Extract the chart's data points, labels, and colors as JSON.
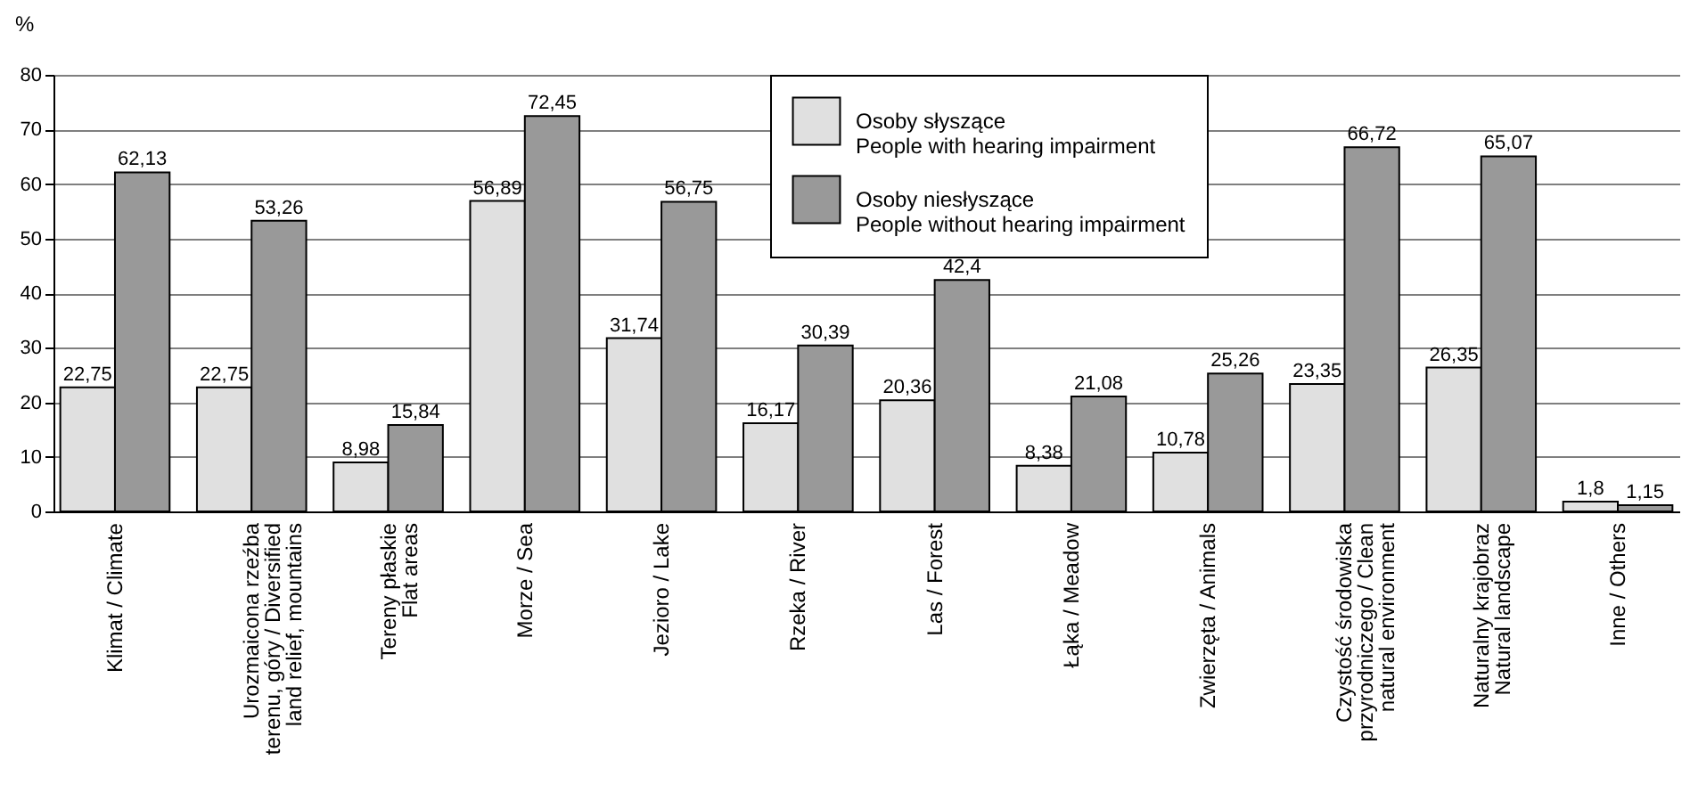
{
  "chart_data": {
    "type": "bar",
    "ylabel": "%",
    "categories": [
      "Klimat / Climate",
      "Urozmaicona rzeźba\nterenu, góry / Diversified\nland relief, mountains",
      "Tereny płaskie\nFlat areas",
      "Morze / Sea",
      "Jezioro / Lake",
      "Rzeka / River",
      "Las / Forest",
      "Łąka  / Meadow",
      "Zwierzęta / Animals",
      "Czystość środowiska\nprzyrodniczego / Clean\nnatural environment",
      "Naturalny krajobraz\nNatural landscape",
      "Inne / Others"
    ],
    "series": [
      {
        "name": "Osoby słyszące\nPeople with hearing impairment",
        "color": "#e0e0e0",
        "values": [
          22.75,
          22.75,
          8.98,
          56.89,
          31.74,
          16.17,
          20.36,
          8.38,
          10.78,
          23.35,
          26.35,
          1.8
        ],
        "value_labels": [
          "22,75",
          "22,75",
          "8,98",
          "56,89",
          "31,74",
          "16,17",
          "20,36",
          "8,38",
          "10,78",
          "23,35",
          "26,35",
          "1,8"
        ]
      },
      {
        "name": "Osoby niesłyszące\nPeople without hearing impairment",
        "color": "#999999",
        "values": [
          62.13,
          53.26,
          15.84,
          72.45,
          56.75,
          30.39,
          42.4,
          21.08,
          25.26,
          66.72,
          65.07,
          1.15
        ],
        "value_labels": [
          "62,13",
          "53,26",
          "15,84",
          "72,45",
          "56,75",
          "30,39",
          "42,4",
          "21,08",
          "25,26",
          "66,72",
          "65,07",
          "1,15"
        ]
      }
    ],
    "ylim": [
      0,
      80
    ],
    "yticks": [
      0,
      10,
      20,
      30,
      40,
      50,
      60,
      70,
      80
    ],
    "grid": "y",
    "legend": "top right"
  }
}
